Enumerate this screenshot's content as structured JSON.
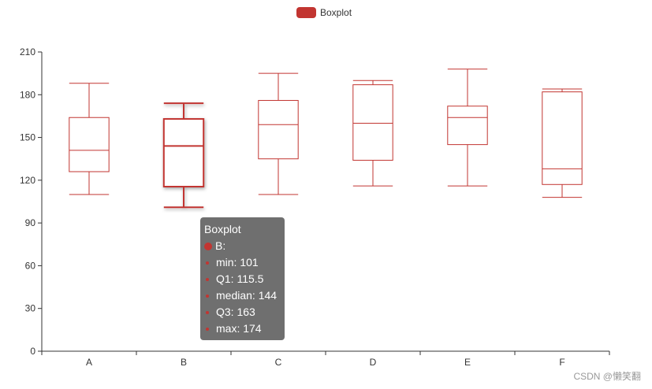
{
  "legend": {
    "label": "Boxplot",
    "color": "#c23531"
  },
  "chart_data": {
    "type": "boxplot",
    "series_name": "Boxplot",
    "categories": [
      "A",
      "B",
      "C",
      "D",
      "E",
      "F"
    ],
    "boxes": [
      {
        "min": 110,
        "q1": 126,
        "median": 141,
        "q3": 164,
        "max": 188
      },
      {
        "min": 101,
        "q1": 115.5,
        "median": 144,
        "q3": 163,
        "max": 174
      },
      {
        "min": 110,
        "q1": 135,
        "median": 159,
        "q3": 176,
        "max": 195
      },
      {
        "min": 116,
        "q1": 134,
        "median": 160,
        "q3": 187,
        "max": 190
      },
      {
        "min": 116,
        "q1": 145,
        "median": 164,
        "q3": 172,
        "max": 198
      },
      {
        "min": 108,
        "q1": 117,
        "median": 128,
        "q3": 182,
        "max": 184
      }
    ],
    "ylim": [
      0,
      210
    ],
    "yticks": [
      "0",
      "30",
      "60",
      "90",
      "120",
      "150",
      "180",
      "210"
    ],
    "highlighted_index": 1,
    "color": "#c23531"
  },
  "tooltip": {
    "title": "Boxplot",
    "item": "B:",
    "lines": [
      "min: 101",
      "Q1: 115.5",
      "median: 144",
      "Q3: 163",
      "max: 174"
    ]
  },
  "watermark": "CSDN @懒笑翻"
}
